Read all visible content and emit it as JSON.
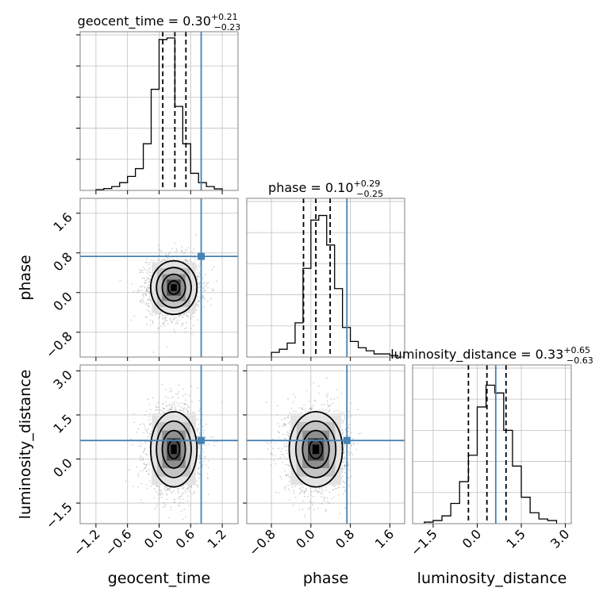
{
  "figure": {
    "type": "corner plot",
    "titles": [
      {
        "param": "geocent_time",
        "median": "0.30",
        "plus": "+0.21",
        "minus": "−0.23"
      },
      {
        "param": "phase",
        "median": "0.10",
        "plus": "+0.29",
        "minus": "−0.25"
      },
      {
        "param": "luminosity_distance",
        "median": "0.33",
        "plus": "+0.65",
        "minus": "−0.63"
      }
    ],
    "axis_labels": {
      "x": [
        "geocent_time",
        "phase",
        "luminosity_distance"
      ],
      "y": [
        "phase",
        "luminosity_distance"
      ]
    },
    "colors": {
      "truth": "#4682b4",
      "hist": "#000000",
      "grid": "#c0c0c0",
      "frame": "#808080"
    }
  },
  "chart_data": [
    {
      "type": "histogram",
      "parameter": "geocent_time",
      "xlim": [
        -1.5,
        1.5
      ],
      "ylim": [
        0,
        1
      ],
      "grid": true,
      "xticks": [
        -1.2,
        -0.6,
        0.0,
        0.6,
        1.2
      ],
      "bin_edges": [
        -1.2,
        -1.05,
        -0.9,
        -0.75,
        -0.6,
        -0.45,
        -0.3,
        -0.15,
        0.0,
        0.15,
        0.3,
        0.45,
        0.6,
        0.75,
        0.9,
        1.05,
        1.2
      ],
      "counts": [
        0.005,
        0.012,
        0.025,
        0.05,
        0.09,
        0.14,
        0.3,
        0.65,
        0.97,
        0.98,
        0.54,
        0.3,
        0.11,
        0.05,
        0.025,
        0.01
      ],
      "quantiles": [
        0.07,
        0.3,
        0.51
      ],
      "truth": 0.8
    },
    {
      "type": "histogram",
      "parameter": "phase",
      "xlim": [
        -1.3,
        1.9
      ],
      "ylim": [
        0,
        1
      ],
      "grid": true,
      "xticks": [
        -0.8,
        0.0,
        0.8,
        1.6
      ],
      "bin_edges": [
        -0.8,
        -0.64,
        -0.48,
        -0.32,
        -0.16,
        0.0,
        0.16,
        0.32,
        0.48,
        0.64,
        0.8,
        0.96,
        1.12,
        1.28,
        1.44,
        1.6,
        1.76,
        1.92
      ],
      "counts": [
        0.03,
        0.05,
        0.09,
        0.22,
        0.57,
        0.88,
        0.91,
        0.72,
        0.44,
        0.19,
        0.1,
        0.06,
        0.04,
        0.02,
        0.02,
        0.01,
        0.0
      ],
      "quantiles": [
        -0.15,
        0.1,
        0.39
      ],
      "truth": 0.73
    },
    {
      "type": "histogram",
      "parameter": "luminosity_distance",
      "xlim": [
        -2.2,
        3.2
      ],
      "ylim": [
        0,
        1
      ],
      "grid": true,
      "xticks": [
        -1.5,
        0.0,
        1.5,
        3.0
      ],
      "bin_edges": [
        -1.8,
        -1.5,
        -1.2,
        -0.9,
        -0.6,
        -0.3,
        0.0,
        0.3,
        0.6,
        0.9,
        1.2,
        1.5,
        1.8,
        2.1,
        2.4,
        2.7
      ],
      "counts": [
        0.01,
        0.02,
        0.05,
        0.13,
        0.27,
        0.44,
        0.75,
        0.89,
        0.84,
        0.6,
        0.37,
        0.17,
        0.07,
        0.03,
        0.02
      ],
      "quantiles": [
        -0.3,
        0.33,
        0.98
      ],
      "truth": 0.63
    },
    {
      "type": "2d-density",
      "x_param": "geocent_time",
      "y_param": "phase",
      "xlim": [
        -1.5,
        1.5
      ],
      "ylim": [
        -1.3,
        1.9
      ],
      "center": [
        0.28,
        0.1
      ],
      "spread": [
        0.22,
        0.27
      ],
      "contour_levels": [
        0.5,
        1.0,
        1.5,
        2.0
      ],
      "n_samples": 2000,
      "truth": [
        0.8,
        0.73
      ],
      "yticks": [
        -0.8,
        0.0,
        0.8,
        1.6
      ]
    },
    {
      "type": "2d-density",
      "x_param": "geocent_time",
      "y_param": "luminosity_distance",
      "xlim": [
        -1.5,
        1.5
      ],
      "ylim": [
        -2.2,
        3.2
      ],
      "center": [
        0.28,
        0.33
      ],
      "spread": [
        0.22,
        0.64
      ],
      "contour_levels": [
        0.5,
        1.0,
        1.5,
        2.0
      ],
      "n_samples": 2000,
      "truth": [
        0.8,
        0.63
      ],
      "yticks": [
        -1.5,
        0.0,
        1.5,
        3.0
      ]
    },
    {
      "type": "2d-density",
      "x_param": "phase",
      "y_param": "luminosity_distance",
      "xlim": [
        -1.3,
        1.9
      ],
      "ylim": [
        -2.2,
        3.2
      ],
      "center": [
        0.1,
        0.33
      ],
      "spread": [
        0.27,
        0.64
      ],
      "contour_levels": [
        0.5,
        1.0,
        1.5,
        2.0
      ],
      "n_samples": 2000,
      "truth": [
        0.73,
        0.63
      ]
    }
  ]
}
